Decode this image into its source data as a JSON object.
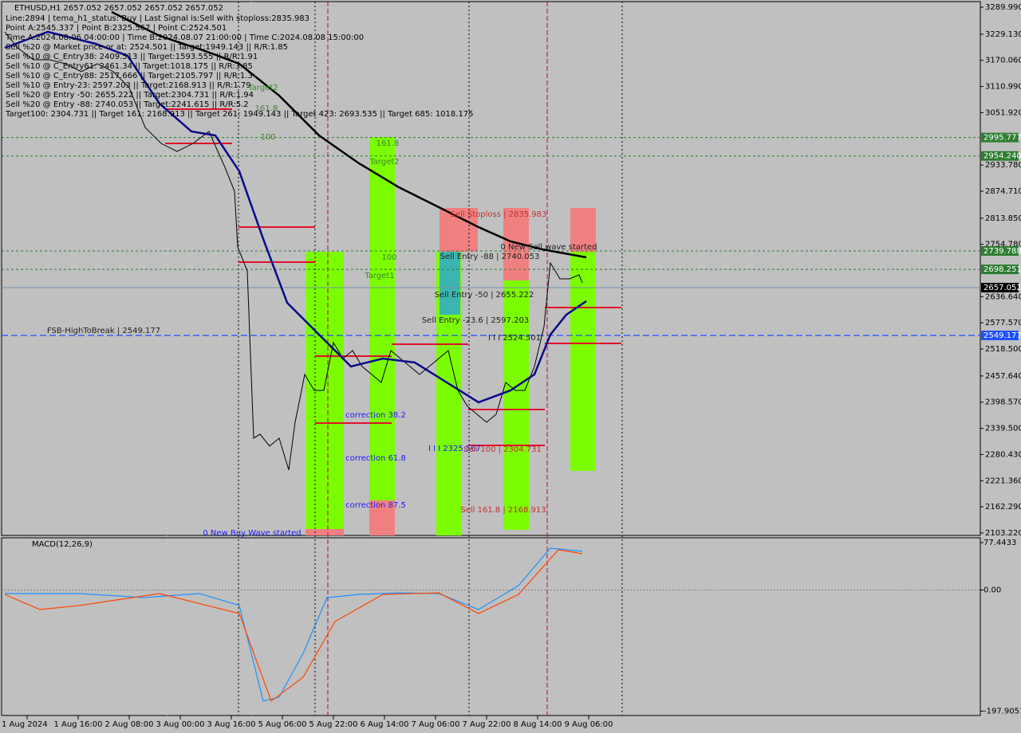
{
  "chart_data": [
    {
      "type": "line",
      "title": "ETHUSD,H1  2657.052 2657.052 2657.052 2657.052",
      "info": [
        "Line:2894 | tema_h1_status: Buy | Last Signal is:Sell with stoploss:2835.983",
        "Point A:2545.337 | Point B:2325.567 | Point C:2524.501",
        "Time A:2024.08.06 04:00:00 | Time B:2024.08.07 21:00:00 | Time C:2024.08.08 15:00:00",
        "Sell %20 @ Market price or at: 2524.501 || Target:1949.143 || R/R:1.85",
        "Sell %10 @ C_Entry38: 2409.513 || Target:1593.555 || R/R:1.91",
        "Sell %10 @ C_Entry61: 2461.34 || Target:1018.175 || R/R:3.85",
        "Sell %10 @ C_Entry88: 2517.666 || Target:2105.797 || R/R:1.3",
        "Sell %10 @ Entry-23: 2597.203 || Target:2168.913 || R/R:1.79",
        "Sell %20 @ Entry -50: 2655.222 || Target:2304.731 || R/R:1.94",
        "Sell %20 @ Entry -88: 2740.053 || Target:2241.615 || R/R:5.2",
        "Target100: 2304.731 || Target 161: 2168.913 || Target 261: 1949.143 || Target 423: 2693.535 || Target 685: 1018.175"
      ],
      "annotations": [
        "Target2",
        "161.8",
        "100",
        "161.8",
        "Target2",
        "100",
        "Target1",
        "Sell Stoploss | 2835.983",
        "0 New Sell wave started",
        "Sell Entry -88 | 2740.053",
        "Sell Entry -50 | 2655.222",
        "Sell Entry -23.6 | 2597.203",
        "I I I 2524.501",
        "FSB-HighToBreak | 2549.177",
        "correction 38.2",
        "correction 61.8",
        "correction 87.5",
        "I I I 2325.567",
        "Sell 100 | 2304.731",
        "Sell 161.8 | 2168.913",
        "0 New Buy Wave started"
      ],
      "series": [
        {
          "color": "#000000",
          "x": [
            -7,
            -3,
            2,
            7,
            12,
            17,
            22,
            27,
            32,
            37,
            42,
            47,
            52,
            57,
            62,
            65,
            66,
            69,
            71,
            73,
            76,
            79,
            82,
            84,
            87,
            90,
            93,
            96,
            99,
            102,
            105,
            108,
            111,
            114,
            117,
            120,
            123,
            126,
            129,
            132,
            135,
            138,
            141,
            144,
            147,
            150,
            153,
            156,
            159,
            162,
            164,
            167,
            170,
            173,
            174
          ],
          "values": [
            3234.3,
            3198.3,
            3171.3,
            3171.3,
            3162.3,
            3144.4,
            3162.3,
            3144.4,
            3108.4,
            3018.5,
            2982.5,
            2964.5,
            2982.5,
            3009.5,
            2928.6,
            2874.6,
            2748.8,
            2694.8,
            2317.3,
            2326.3,
            2299.3,
            2317.3,
            2245.4,
            2353.2,
            2461.1,
            2425.1,
            2425.1,
            2533.0,
            2497.0,
            2515.0,
            2479.0,
            2461.1,
            2443.1,
            2515.0,
            2497.0,
            2479.0,
            2461.1,
            2479.0,
            2497.0,
            2515.0,
            2425.1,
            2389.2,
            2371.2,
            2353.2,
            2371.2,
            2443.1,
            2425.1,
            2425.1,
            2479.0,
            2569.0,
            2712.8,
            2676.9,
            2676.9,
            2685.9,
            2667.9
          ]
        },
        {
          "color": "#000000",
          "x": [
            26.5,
            41.5,
            56.5,
            66.5,
            79,
            91.5,
            104,
            116.5,
            129,
            141.5,
            151.5,
            161.5,
            175.25
          ],
          "values": [
            3279.2,
            3225.3,
            3189.3,
            3162.3,
            3090.4,
            3000.5,
            2937.6,
            2883.6,
            2838.6,
            2793.6,
            2761.4,
            2743.4,
            2725.4
          ]
        },
        {
          "color": "#0a0a8c",
          "x": [
            -7,
            6.5,
            21.5,
            31.5,
            41.5,
            51.5,
            59,
            66.5,
            74,
            81.5,
            91.5,
            101.5,
            111.5,
            121.5,
            131.5,
            141.5,
            151.5,
            159,
            164,
            169,
            175.25
          ],
          "values": [
            3198.3,
            3234.3,
            3207.3,
            3180.3,
            3072.4,
            3009.5,
            3000.5,
            2919.6,
            2766.8,
            2622.9,
            2551.0,
            2479.0,
            2497.0,
            2488.1,
            2443.1,
            2398.2,
            2425.1,
            2461.1,
            2551.0,
            2596.0,
            2626.5
          ]
        }
      ],
      "levels": [
        {
          "value": 2995.777,
          "label": "2995.777",
          "color": "#2e7d32"
        },
        {
          "value": 2954.24,
          "label": "2954.240",
          "color": "#2e7d32"
        },
        {
          "value": 2739.788,
          "label": "2739.788",
          "color": "#2e7d32"
        },
        {
          "value": 2698.251,
          "label": "2698.251",
          "color": "#2e7d32"
        },
        {
          "value": 2657.052,
          "label": "2657.052",
          "color": "#000000"
        },
        {
          "value": 2549.177,
          "label": "2549.177",
          "color": "#1e50ff"
        }
      ],
      "xlim": [
        -8,
        298.75
      ],
      "ylim": [
        2097.8,
        3302.6
      ],
      "xticks": [
        {
          "value": 0,
          "label": "1 Aug 2024"
        },
        {
          "value": 16,
          "label": "1 Aug 16:00"
        },
        {
          "value": 32,
          "label": "2 Aug 08:00"
        },
        {
          "value": 48,
          "label": "3 Aug 00:00"
        },
        {
          "value": 64,
          "label": "3 Aug 16:00"
        },
        {
          "value": 80,
          "label": "5 Aug 06:00"
        },
        {
          "value": 96,
          "label": "5 Aug 22:00"
        },
        {
          "value": 112,
          "label": "6 Aug 14:00"
        },
        {
          "value": 128,
          "label": "7 Aug 06:00"
        },
        {
          "value": 144,
          "label": "7 Aug 22:00"
        },
        {
          "value": 160,
          "label": "8 Aug 14:00"
        },
        {
          "value": 176,
          "label": "9 Aug 06:00"
        }
      ],
      "yticks": [
        {
          "value": 3289.99,
          "label": "3289.990"
        },
        {
          "value": 3229.13,
          "label": "3229.130"
        },
        {
          "value": 3170.06,
          "label": "3170.060"
        },
        {
          "value": 3110.99,
          "label": "3110.990"
        },
        {
          "value": 3051.92,
          "label": "3051.920"
        },
        {
          "value": 2933.78,
          "label": "2933.780"
        },
        {
          "value": 2874.71,
          "label": "2874.710"
        },
        {
          "value": 2813.85,
          "label": "2813.850"
        },
        {
          "value": 2754.78,
          "label": "2754.780"
        },
        {
          "value": 2636.64,
          "label": "2636.640"
        },
        {
          "value": 2577.57,
          "label": "2577.570"
        },
        {
          "value": 2518.5,
          "label": "2518.500"
        },
        {
          "value": 2457.64,
          "label": "2457.640"
        },
        {
          "value": 2398.57,
          "label": "2398.570"
        },
        {
          "value": 2339.5,
          "label": "2339.500"
        },
        {
          "value": 2280.43,
          "label": "2280.430"
        },
        {
          "value": 2221.36,
          "label": "2221.360"
        },
        {
          "value": 2162.29,
          "label": "2162.290"
        },
        {
          "value": 2103.22,
          "label": "2103.220"
        }
      ]
    },
    {
      "type": "line",
      "title": "MACD(12,26,9)",
      "ylim": [
        -205,
        84
      ],
      "yticks": [
        {
          "value": 77.4433,
          "label": "77.4433"
        },
        {
          "value": 0,
          "label": "0.00"
        },
        {
          "value": -197.9051,
          "label": "-197.9051"
        }
      ],
      "series": [
        {
          "color": "#1e90ff",
          "x": [
            -7,
            16.5,
            36.5,
            54,
            66.5,
            74,
            79,
            86.5,
            94,
            104,
            116.5,
            129,
            141.5,
            154,
            164,
            174
          ],
          "values": [
            -5.8,
            -5.8,
            -12.3,
            -5.8,
            -25.3,
            -181.5,
            -175.1,
            -103.5,
            -12.3,
            -7.3,
            -4.7,
            -5.8,
            -31.9,
            7.2,
            68.4,
            63.2
          ]
        },
        {
          "color": "#ff4500",
          "x": [
            -7,
            4,
            16.5,
            41.5,
            66.5,
            76.5,
            86.5,
            96.5,
            111.5,
            129,
            141.5,
            154,
            166.5,
            174
          ],
          "values": [
            -7.3,
            -31.9,
            -25.3,
            -5.8,
            -38.4,
            -181.5,
            -142.5,
            -51.4,
            -7.3,
            -4.7,
            -38.4,
            -7.3,
            65.8,
            59.3
          ]
        }
      ]
    }
  ]
}
